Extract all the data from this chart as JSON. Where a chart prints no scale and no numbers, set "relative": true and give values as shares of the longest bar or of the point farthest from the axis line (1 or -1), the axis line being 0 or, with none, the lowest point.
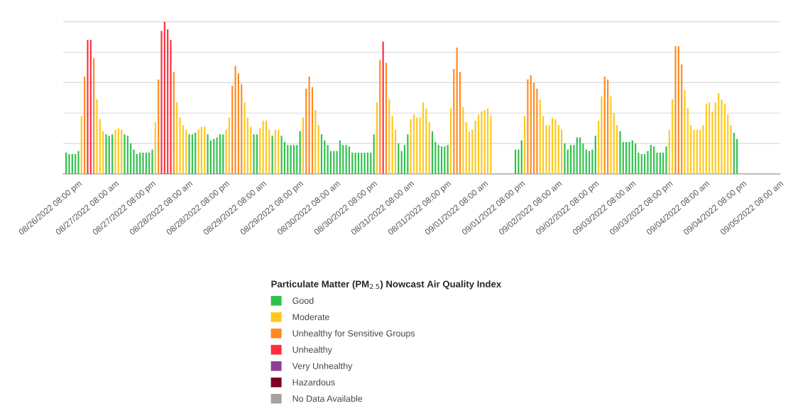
{
  "chart_data": {
    "type": "bar",
    "relative": true,
    "grid": "y",
    "tick_labels": "x",
    "legend": "bottom",
    "legend_title": "Particulate Matter (PM$_{2.5}$) Nowcast Air Quality Index",
    "x": [
      "2022-08-26T16:00",
      "2022-08-26T17:00",
      "2022-08-26T18:00",
      "2022-08-26T19:00",
      "2022-08-26T20:00",
      "2022-08-26T21:00",
      "2022-08-26T22:00",
      "2022-08-26T23:00",
      "2022-08-27T00:00",
      "2022-08-27T01:00",
      "2022-08-27T02:00",
      "2022-08-27T03:00",
      "2022-08-27T04:00",
      "2022-08-27T05:00",
      "2022-08-27T06:00",
      "2022-08-27T07:00",
      "2022-08-27T08:00",
      "2022-08-27T09:00",
      "2022-08-27T10:00",
      "2022-08-27T11:00",
      "2022-08-27T12:00",
      "2022-08-27T13:00",
      "2022-08-27T14:00",
      "2022-08-27T15:00",
      "2022-08-27T16:00",
      "2022-08-27T17:00",
      "2022-08-27T18:00",
      "2022-08-27T19:00",
      "2022-08-27T20:00",
      "2022-08-27T21:00",
      "2022-08-27T22:00",
      "2022-08-27T23:00",
      "2022-08-28T00:00",
      "2022-08-28T01:00",
      "2022-08-28T02:00",
      "2022-08-28T03:00",
      "2022-08-28T04:00",
      "2022-08-28T05:00",
      "2022-08-28T06:00",
      "2022-08-28T07:00",
      "2022-08-28T08:00",
      "2022-08-28T09:00",
      "2022-08-28T10:00",
      "2022-08-28T11:00",
      "2022-08-28T12:00",
      "2022-08-28T13:00",
      "2022-08-28T14:00",
      "2022-08-28T15:00",
      "2022-08-28T16:00",
      "2022-08-28T17:00",
      "2022-08-28T18:00",
      "2022-08-28T19:00",
      "2022-08-28T20:00",
      "2022-08-28T21:00",
      "2022-08-28T22:00",
      "2022-08-28T23:00",
      "2022-08-29T00:00",
      "2022-08-29T01:00",
      "2022-08-29T02:00",
      "2022-08-29T03:00",
      "2022-08-29T04:00",
      "2022-08-29T05:00",
      "2022-08-29T06:00",
      "2022-08-29T07:00",
      "2022-08-29T08:00",
      "2022-08-29T09:00",
      "2022-08-29T10:00",
      "2022-08-29T11:00",
      "2022-08-29T12:00",
      "2022-08-29T13:00",
      "2022-08-29T14:00",
      "2022-08-29T15:00",
      "2022-08-29T16:00",
      "2022-08-29T17:00",
      "2022-08-29T18:00",
      "2022-08-29T19:00",
      "2022-08-29T20:00",
      "2022-08-29T21:00",
      "2022-08-29T22:00",
      "2022-08-29T23:00",
      "2022-08-30T00:00",
      "2022-08-30T01:00",
      "2022-08-30T02:00",
      "2022-08-30T03:00",
      "2022-08-30T04:00",
      "2022-08-30T05:00",
      "2022-08-30T06:00",
      "2022-08-30T07:00",
      "2022-08-30T08:00",
      "2022-08-30T09:00",
      "2022-08-30T10:00",
      "2022-08-30T11:00",
      "2022-08-30T12:00",
      "2022-08-30T13:00",
      "2022-08-30T14:00",
      "2022-08-30T15:00",
      "2022-08-30T16:00",
      "2022-08-30T17:00",
      "2022-08-30T18:00",
      "2022-08-30T19:00",
      "2022-08-30T20:00",
      "2022-08-30T21:00",
      "2022-08-30T22:00",
      "2022-08-30T23:00",
      "2022-08-31T00:00",
      "2022-08-31T01:00",
      "2022-08-31T02:00",
      "2022-08-31T03:00",
      "2022-08-31T04:00",
      "2022-08-31T05:00",
      "2022-08-31T06:00",
      "2022-08-31T07:00",
      "2022-08-31T08:00",
      "2022-08-31T09:00",
      "2022-08-31T10:00",
      "2022-08-31T11:00",
      "2022-08-31T12:00",
      "2022-08-31T13:00",
      "2022-08-31T14:00",
      "2022-08-31T15:00",
      "2022-08-31T16:00",
      "2022-08-31T17:00",
      "2022-08-31T18:00",
      "2022-08-31T19:00",
      "2022-08-31T20:00",
      "2022-08-31T21:00",
      "2022-08-31T22:00",
      "2022-08-31T23:00",
      "2022-09-01T00:00",
      "2022-09-01T01:00",
      "2022-09-01T02:00",
      "2022-09-01T03:00",
      "2022-09-01T04:00",
      "2022-09-01T05:00",
      "2022-09-01T06:00",
      "2022-09-01T07:00",
      "2022-09-01T08:00",
      "2022-09-01T09:00",
      "2022-09-01T10:00",
      "2022-09-01T11:00",
      "2022-09-01T12:00",
      "2022-09-01T13:00",
      "2022-09-01T14:00",
      "2022-09-01T15:00",
      "2022-09-01T16:00",
      "2022-09-01T17:00",
      "2022-09-01T18:00",
      "2022-09-01T19:00",
      "2022-09-01T20:00",
      "2022-09-01T21:00",
      "2022-09-01T22:00",
      "2022-09-01T23:00",
      "2022-09-02T00:00",
      "2022-09-02T01:00",
      "2022-09-02T02:00",
      "2022-09-02T03:00",
      "2022-09-02T04:00",
      "2022-09-02T05:00",
      "2022-09-02T06:00",
      "2022-09-02T07:00",
      "2022-09-02T08:00",
      "2022-09-02T09:00",
      "2022-09-02T10:00",
      "2022-09-02T11:00",
      "2022-09-02T12:00",
      "2022-09-02T13:00",
      "2022-09-02T14:00",
      "2022-09-02T15:00",
      "2022-09-02T16:00",
      "2022-09-02T17:00",
      "2022-09-02T18:00",
      "2022-09-02T19:00",
      "2022-09-02T20:00",
      "2022-09-02T21:00",
      "2022-09-02T22:00",
      "2022-09-02T23:00",
      "2022-09-03T00:00",
      "2022-09-03T01:00",
      "2022-09-03T02:00",
      "2022-09-03T03:00",
      "2022-09-03T04:00",
      "2022-09-03T05:00",
      "2022-09-03T06:00",
      "2022-09-03T07:00",
      "2022-09-03T08:00",
      "2022-09-03T09:00",
      "2022-09-03T10:00",
      "2022-09-03T11:00",
      "2022-09-03T12:00",
      "2022-09-03T13:00",
      "2022-09-03T14:00",
      "2022-09-03T15:00",
      "2022-09-03T16:00",
      "2022-09-03T17:00",
      "2022-09-03T18:00",
      "2022-09-03T19:00",
      "2022-09-03T20:00",
      "2022-09-03T21:00",
      "2022-09-03T22:00",
      "2022-09-03T23:00",
      "2022-09-04T00:00",
      "2022-09-04T01:00",
      "2022-09-04T02:00",
      "2022-09-04T03:00",
      "2022-09-04T04:00",
      "2022-09-04T05:00",
      "2022-09-04T06:00",
      "2022-09-04T07:00",
      "2022-09-04T08:00",
      "2022-09-04T09:00",
      "2022-09-04T10:00",
      "2022-09-04T11:00",
      "2022-09-04T12:00",
      "2022-09-04T13:00",
      "2022-09-04T14:00",
      "2022-09-04T15:00",
      "2022-09-04T16:00",
      "2022-09-04T17:00",
      "2022-09-04T18:00"
    ],
    "xlim": [
      "2022-08-26T15:00",
      "2022-09-05T08:00"
    ],
    "xticks": [
      {
        "value": "2022-08-26T20:00",
        "label": "08/26/2022 08:00 pm"
      },
      {
        "value": "2022-08-27T08:00",
        "label": "08/27/2022 08:00 am"
      },
      {
        "value": "2022-08-27T20:00",
        "label": "08/27/2022 08:00 pm"
      },
      {
        "value": "2022-08-28T08:00",
        "label": "08/28/2022 08:00 am"
      },
      {
        "value": "2022-08-28T20:00",
        "label": "08/28/2022 08:00 pm"
      },
      {
        "value": "2022-08-29T08:00",
        "label": "08/29/2022 08:00 am"
      },
      {
        "value": "2022-08-29T20:00",
        "label": "08/29/2022 08:00 pm"
      },
      {
        "value": "2022-08-30T08:00",
        "label": "08/30/2022 08:00 am"
      },
      {
        "value": "2022-08-30T20:00",
        "label": "08/30/2022 08:00 pm"
      },
      {
        "value": "2022-08-31T08:00",
        "label": "08/31/2022 08:00 am"
      },
      {
        "value": "2022-08-31T20:00",
        "label": "08/31/2022 08:00 pm"
      },
      {
        "value": "2022-09-01T08:00",
        "label": "09/01/2022 08:00 am"
      },
      {
        "value": "2022-09-01T20:00",
        "label": "09/01/2022 08:00 pm"
      },
      {
        "value": "2022-09-02T08:00",
        "label": "09/02/2022 08:00 am"
      },
      {
        "value": "2022-09-02T20:00",
        "label": "09/02/2022 08:00 pm"
      },
      {
        "value": "2022-09-03T08:00",
        "label": "09/03/2022 08:00 am"
      },
      {
        "value": "2022-09-03T20:00",
        "label": "09/03/2022 08:00 pm"
      },
      {
        "value": "2022-09-04T08:00",
        "label": "09/04/2022 08:00 am"
      },
      {
        "value": "2022-09-04T20:00",
        "label": "09/04/2022 08:00 pm"
      },
      {
        "value": "2022-09-05T08:00",
        "label": "09/05/2022 08:00 am"
      }
    ],
    "series": [
      {
        "name": "Good",
        "color": "#2ec24a",
        "values": [
          0.14,
          0.13,
          0.13,
          0.13,
          0.15,
          null,
          null,
          null,
          null,
          null,
          null,
          null,
          null,
          0.26,
          0.25,
          0.26,
          null,
          null,
          null,
          0.26,
          0.25,
          0.2,
          0.16,
          0.13,
          0.14,
          0.14,
          0.14,
          0.14,
          0.16,
          null,
          null,
          null,
          null,
          null,
          null,
          null,
          null,
          null,
          null,
          null,
          0.26,
          0.26,
          0.27,
          null,
          null,
          null,
          0.26,
          0.22,
          0.23,
          0.24,
          0.26,
          0.26,
          null,
          null,
          null,
          null,
          null,
          null,
          null,
          null,
          null,
          0.26,
          0.26,
          null,
          null,
          null,
          null,
          0.25,
          null,
          null,
          0.25,
          0.21,
          0.19,
          0.19,
          0.19,
          0.19,
          0.28,
          null,
          null,
          null,
          null,
          null,
          null,
          0.26,
          0.22,
          0.19,
          0.15,
          0.15,
          0.15,
          0.22,
          0.19,
          0.19,
          0.18,
          0.14,
          0.14,
          0.14,
          0.14,
          0.14,
          0.14,
          0.14,
          0.26,
          null,
          null,
          null,
          null,
          null,
          null,
          null,
          0.2,
          0.15,
          0.19,
          0.26,
          null,
          null,
          null,
          null,
          null,
          null,
          null,
          0.28,
          0.21,
          0.19,
          0.18,
          0.18,
          0.19,
          null,
          null,
          null,
          null,
          null,
          null,
          null,
          null,
          null,
          null,
          null,
          null,
          null,
          null,
          null,
          null,
          null,
          null,
          null,
          null,
          null,
          0.16,
          0.16,
          0.22,
          null,
          null,
          null,
          null,
          null,
          null,
          null,
          null,
          null,
          null,
          null,
          null,
          null,
          0.2,
          0.16,
          0.19,
          0.19,
          0.24,
          0.24,
          0.2,
          0.16,
          0.15,
          0.16,
          0.25,
          null,
          null,
          null,
          null,
          null,
          null,
          null,
          0.28,
          0.21,
          0.21,
          0.21,
          0.22,
          0.2,
          0.14,
          0.13,
          0.13,
          0.15,
          0.19,
          0.18,
          0.14,
          0.14,
          0.14,
          0.18,
          null,
          null,
          null,
          null,
          null,
          null,
          null,
          null,
          null,
          null,
          null,
          null,
          null,
          null,
          null,
          null,
          null,
          null,
          null,
          null,
          null,
          0.27,
          0.23
        ]
      },
      {
        "name": "Moderate",
        "color": "#ffc81a",
        "values": [
          null,
          null,
          null,
          null,
          null,
          0.38,
          null,
          null,
          null,
          null,
          0.49,
          0.36,
          0.28,
          null,
          null,
          null,
          0.29,
          0.3,
          0.29,
          null,
          null,
          null,
          null,
          null,
          null,
          null,
          null,
          null,
          null,
          0.34,
          null,
          null,
          null,
          null,
          null,
          null,
          0.47,
          0.37,
          0.32,
          0.29,
          null,
          null,
          null,
          0.29,
          0.31,
          0.31,
          null,
          null,
          null,
          null,
          null,
          null,
          0.29,
          0.37,
          null,
          null,
          null,
          null,
          0.47,
          0.37,
          0.31,
          null,
          null,
          0.3,
          0.35,
          0.35,
          0.29,
          null,
          0.29,
          0.29,
          null,
          null,
          null,
          null,
          null,
          null,
          null,
          0.37,
          null,
          null,
          null,
          0.42,
          0.32,
          null,
          null,
          null,
          null,
          null,
          null,
          null,
          null,
          null,
          null,
          null,
          null,
          null,
          null,
          null,
          null,
          null,
          null,
          0.47,
          null,
          null,
          null,
          0.49,
          0.38,
          0.29,
          null,
          null,
          null,
          null,
          0.36,
          0.39,
          0.37,
          0.37,
          0.47,
          0.43,
          0.34,
          null,
          null,
          null,
          null,
          null,
          null,
          0.43,
          null,
          null,
          null,
          0.44,
          0.34,
          0.28,
          0.29,
          0.35,
          0.39,
          0.41,
          0.42,
          0.43,
          0.38,
          null,
          null,
          null,
          null,
          null,
          null,
          null,
          null,
          null,
          null,
          0.38,
          null,
          null,
          null,
          null,
          0.49,
          0.38,
          0.32,
          0.32,
          0.37,
          0.36,
          0.32,
          0.29,
          null,
          null,
          null,
          null,
          null,
          null,
          null,
          null,
          null,
          null,
          null,
          0.35,
          0.51,
          null,
          null,
          0.51,
          0.4,
          0.32,
          null,
          null,
          null,
          null,
          null,
          null,
          null,
          null,
          null,
          null,
          null,
          null,
          null,
          null,
          null,
          null,
          0.29,
          0.49,
          null,
          null,
          null,
          0.55,
          0.43,
          0.32,
          0.29,
          0.29,
          0.29,
          0.32,
          0.46,
          0.47,
          0.41,
          0.47,
          0.53,
          0.49,
          0.46,
          0.39,
          0.32,
          null,
          null
        ]
      },
      {
        "name": "Unhealthy for Sensitive Groups",
        "color": "#ff8a1f",
        "values": [
          null,
          null,
          null,
          null,
          null,
          null,
          0.64,
          null,
          null,
          0.76,
          null,
          null,
          null,
          null,
          null,
          null,
          null,
          null,
          null,
          null,
          null,
          null,
          null,
          null,
          null,
          null,
          null,
          null,
          null,
          null,
          0.62,
          null,
          null,
          null,
          null,
          0.67,
          null,
          null,
          null,
          null,
          null,
          null,
          null,
          null,
          null,
          null,
          null,
          null,
          null,
          null,
          null,
          null,
          null,
          null,
          0.58,
          0.71,
          0.66,
          0.59,
          null,
          null,
          null,
          null,
          null,
          null,
          null,
          null,
          null,
          null,
          null,
          null,
          null,
          null,
          null,
          null,
          null,
          null,
          null,
          null,
          0.56,
          0.64,
          0.57,
          null,
          null,
          null,
          null,
          null,
          null,
          null,
          null,
          null,
          null,
          null,
          null,
          null,
          null,
          null,
          null,
          null,
          null,
          null,
          null,
          null,
          0.75,
          null,
          0.73,
          null,
          null,
          null,
          null,
          null,
          null,
          null,
          null,
          null,
          null,
          null,
          null,
          null,
          null,
          null,
          null,
          null,
          null,
          null,
          null,
          null,
          0.69,
          0.83,
          0.67,
          null,
          null,
          null,
          null,
          null,
          null,
          null,
          null,
          null,
          null,
          null,
          null,
          null,
          null,
          null,
          null,
          null,
          null,
          null,
          null,
          null,
          0.62,
          0.65,
          0.6,
          0.56,
          null,
          null,
          null,
          null,
          null,
          null,
          null,
          null,
          null,
          null,
          null,
          null,
          null,
          null,
          null,
          null,
          null,
          null,
          null,
          null,
          null,
          0.64,
          0.62,
          null,
          null,
          null,
          null,
          null,
          null,
          null,
          null,
          null,
          null,
          null,
          null,
          null,
          null,
          null,
          null,
          null,
          null,
          null,
          null,
          null,
          0.84,
          0.84,
          0.72,
          null,
          null,
          null,
          null,
          null,
          null,
          null,
          null,
          null,
          null,
          null,
          null,
          null,
          null,
          null,
          null,
          null,
          null
        ]
      },
      {
        "name": "Unhealthy",
        "color": "#ff2d3c",
        "values": [
          null,
          null,
          null,
          null,
          null,
          null,
          null,
          0.88,
          0.88,
          null,
          null,
          null,
          null,
          null,
          null,
          null,
          null,
          null,
          null,
          null,
          null,
          null,
          null,
          null,
          null,
          null,
          null,
          null,
          null,
          null,
          null,
          0.94,
          1.0,
          0.95,
          0.88,
          null,
          null,
          null,
          null,
          null,
          null,
          null,
          null,
          null,
          null,
          null,
          null,
          null,
          null,
          null,
          null,
          null,
          null,
          null,
          null,
          null,
          null,
          null,
          null,
          null,
          null,
          null,
          null,
          null,
          null,
          null,
          null,
          null,
          null,
          null,
          null,
          null,
          null,
          null,
          null,
          null,
          null,
          null,
          null,
          null,
          null,
          null,
          null,
          null,
          null,
          null,
          null,
          null,
          null,
          null,
          null,
          null,
          null,
          null,
          null,
          null,
          null,
          null,
          null,
          null,
          null,
          null,
          null,
          0.87,
          null,
          null,
          null,
          null,
          null,
          null,
          null,
          null,
          null,
          null,
          null,
          null,
          null,
          null,
          null,
          null,
          null,
          null,
          null,
          null,
          null,
          null,
          null,
          null,
          null,
          null,
          null,
          null,
          null,
          null,
          null,
          null,
          null,
          null,
          null,
          null,
          null,
          null,
          null,
          null,
          null,
          null,
          null,
          null,
          null,
          null,
          null,
          null,
          null,
          null,
          null,
          null,
          null,
          null,
          null,
          null,
          null,
          null,
          null,
          null,
          null,
          null,
          null,
          null,
          null,
          null,
          null,
          null,
          null,
          null,
          null,
          null,
          null,
          null,
          null,
          null,
          null,
          null,
          null,
          null,
          null,
          null,
          null,
          null,
          null,
          null,
          null,
          null,
          null,
          null,
          null,
          null,
          null,
          null,
          null,
          null,
          null,
          null,
          null,
          null,
          null,
          null,
          null,
          null,
          null,
          null,
          null,
          null,
          null,
          null,
          null,
          null,
          null,
          null,
          null
        ]
      },
      {
        "name": "Very Unhealthy",
        "color": "#8f3f97",
        "values": [
          null,
          null,
          null,
          null,
          null,
          null,
          null,
          null,
          null,
          null,
          null,
          null,
          null,
          null,
          null,
          null,
          null,
          null,
          null,
          null,
          null,
          null,
          null,
          null,
          null,
          null,
          null,
          null,
          null,
          null,
          null,
          null,
          null,
          null,
          null,
          null,
          null,
          null,
          null,
          null,
          null,
          null,
          null,
          null,
          null,
          null,
          null,
          null,
          null,
          null,
          null,
          null,
          null,
          null,
          null,
          null,
          null,
          null,
          null,
          null,
          null,
          null,
          null,
          null,
          null,
          null,
          null,
          null,
          null,
          null,
          null,
          null,
          null,
          null,
          null,
          null,
          null,
          null,
          null,
          null,
          null,
          null,
          null,
          null,
          null,
          null,
          null,
          null,
          null,
          null,
          null,
          null,
          null,
          null,
          null,
          null,
          null,
          null,
          null,
          null,
          null,
          null,
          null,
          null,
          null,
          null,
          null,
          null,
          null,
          null,
          null,
          null,
          null,
          null,
          null,
          null,
          null,
          null,
          null,
          null,
          null,
          null,
          null,
          null,
          null,
          null,
          null,
          null,
          null,
          null,
          null,
          null,
          null,
          null,
          null,
          null,
          null,
          null,
          null,
          null,
          null,
          null,
          null,
          null,
          null,
          null,
          null,
          null,
          null,
          null,
          null,
          null,
          null,
          null,
          null,
          null,
          null,
          null,
          null,
          null,
          null,
          null,
          null,
          null,
          null,
          null,
          null,
          null,
          null,
          null,
          null,
          null,
          null,
          null,
          null,
          null,
          null,
          null,
          null,
          null,
          null,
          null,
          null,
          null,
          null,
          null,
          null,
          null,
          null,
          null,
          null,
          null,
          null,
          null,
          null,
          null,
          null,
          null,
          null,
          null,
          null,
          null,
          null,
          null,
          null,
          null,
          null,
          null,
          null,
          null,
          null,
          null,
          null,
          null,
          null,
          null,
          null,
          null,
          null
        ]
      },
      {
        "name": "Hazardous",
        "color": "#7e0023",
        "values": [
          null,
          null,
          null,
          null,
          null,
          null,
          null,
          null,
          null,
          null,
          null,
          null,
          null,
          null,
          null,
          null,
          null,
          null,
          null,
          null,
          null,
          null,
          null,
          null,
          null,
          null,
          null,
          null,
          null,
          null,
          null,
          null,
          null,
          null,
          null,
          null,
          null,
          null,
          null,
          null,
          null,
          null,
          null,
          null,
          null,
          null,
          null,
          null,
          null,
          null,
          null,
          null,
          null,
          null,
          null,
          null,
          null,
          null,
          null,
          null,
          null,
          null,
          null,
          null,
          null,
          null,
          null,
          null,
          null,
          null,
          null,
          null,
          null,
          null,
          null,
          null,
          null,
          null,
          null,
          null,
          null,
          null,
          null,
          null,
          null,
          null,
          null,
          null,
          null,
          null,
          null,
          null,
          null,
          null,
          null,
          null,
          null,
          null,
          null,
          null,
          null,
          null,
          null,
          null,
          null,
          null,
          null,
          null,
          null,
          null,
          null,
          null,
          null,
          null,
          null,
          null,
          null,
          null,
          null,
          null,
          null,
          null,
          null,
          null,
          null,
          null,
          null,
          null,
          null,
          null,
          null,
          null,
          null,
          null,
          null,
          null,
          null,
          null,
          null,
          null,
          null,
          null,
          null,
          null,
          null,
          null,
          null,
          null,
          null,
          null,
          null,
          null,
          null,
          null,
          null,
          null,
          null,
          null,
          null,
          null,
          null,
          null,
          null,
          null,
          null,
          null,
          null,
          null,
          null,
          null,
          null,
          null,
          null,
          null,
          null,
          null,
          null,
          null,
          null,
          null,
          null,
          null,
          null,
          null,
          null,
          null,
          null,
          null,
          null,
          null,
          null,
          null,
          null,
          null,
          null,
          null,
          null,
          null,
          null,
          null,
          null,
          null,
          null,
          null,
          null,
          null,
          null,
          null,
          null,
          null,
          null,
          null,
          null,
          null,
          null,
          null,
          null,
          null,
          null
        ]
      },
      {
        "name": "No Data Available",
        "color": "#a3a39c",
        "values": [
          null,
          null,
          null,
          null,
          null,
          null,
          null,
          null,
          null,
          null,
          null,
          null,
          null,
          null,
          null,
          null,
          null,
          null,
          null,
          null,
          null,
          null,
          null,
          null,
          null,
          null,
          null,
          null,
          null,
          null,
          null,
          null,
          null,
          null,
          null,
          null,
          null,
          null,
          null,
          null,
          null,
          null,
          null,
          null,
          null,
          null,
          null,
          null,
          null,
          null,
          null,
          null,
          null,
          null,
          null,
          null,
          null,
          null,
          null,
          null,
          null,
          null,
          null,
          null,
          null,
          null,
          null,
          null,
          null,
          null,
          null,
          null,
          null,
          null,
          null,
          null,
          null,
          null,
          null,
          null,
          null,
          null,
          null,
          null,
          null,
          null,
          null,
          null,
          null,
          null,
          null,
          null,
          null,
          null,
          null,
          null,
          null,
          null,
          null,
          null,
          null,
          null,
          null,
          null,
          null,
          null,
          null,
          null,
          null,
          null,
          null,
          null,
          null,
          null,
          null,
          null,
          null,
          null,
          null,
          null,
          null,
          null,
          null,
          null,
          null,
          null,
          null,
          null,
          null,
          null,
          null,
          null,
          null,
          null,
          null,
          null,
          null,
          null,
          null,
          null,
          null,
          null,
          null,
          null,
          null,
          null,
          null,
          null,
          null,
          null,
          null,
          null,
          null,
          null,
          null,
          null,
          null,
          null,
          null,
          null,
          null,
          null,
          null,
          null,
          null,
          null,
          null,
          null,
          null,
          null,
          null,
          null,
          null,
          null,
          null,
          null,
          null,
          null,
          null,
          null,
          null,
          null,
          null,
          null,
          null,
          null,
          null,
          null,
          null,
          null,
          null,
          null,
          null,
          null,
          null,
          null,
          null,
          null,
          null,
          null,
          null,
          null,
          null,
          null,
          null,
          null,
          null,
          null,
          null,
          null,
          null,
          null,
          null,
          null,
          null,
          null,
          null,
          null,
          null
        ]
      }
    ]
  }
}
